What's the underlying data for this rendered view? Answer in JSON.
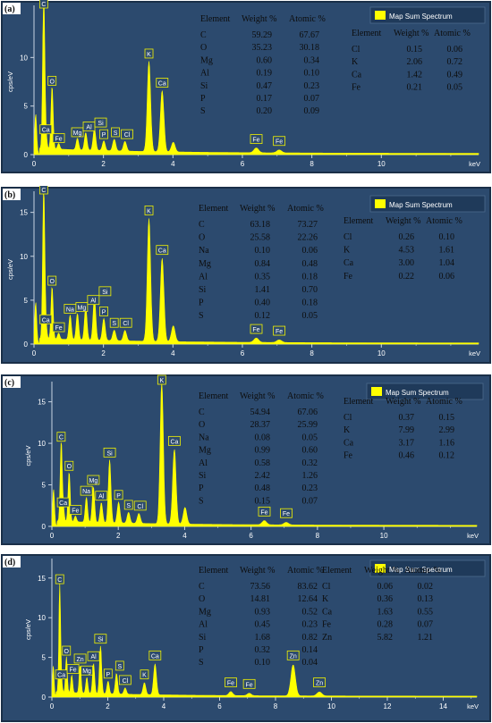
{
  "colors": {
    "panel_bg": "#2c4a6e",
    "panel_border": "#1a2f48",
    "axis": "#c8d4e2",
    "spectrum": "#ffff00",
    "label_box": "#f3f300",
    "text": "#ffffff",
    "table_text": "#0d0d0d"
  },
  "chart_data": [
    {
      "type": "area",
      "panel_label": "(a)",
      "legend": "Map Sum Spectrum",
      "ylabel": "cps/eV",
      "xlabel": "keV",
      "xlim": [
        0,
        12.8
      ],
      "ylim": [
        0,
        15
      ],
      "xticks": [
        "0",
        "2",
        "4",
        "6",
        "8",
        "10"
      ],
      "yticks": [
        "0",
        "5",
        "10"
      ],
      "peaks": [
        {
          "label": "C",
          "x": 0.28,
          "y": 16
        },
        {
          "label": "O",
          "x": 0.52,
          "y": 6.5
        },
        {
          "label": "Ca",
          "x": 0.34,
          "y": 1.5
        },
        {
          "label": "Fe",
          "x": 0.71,
          "y": 0.6
        },
        {
          "label": "Mg",
          "x": 1.25,
          "y": 1.2
        },
        {
          "label": "Al",
          "x": 1.49,
          "y": 1.8
        },
        {
          "label": "Si",
          "x": 1.74,
          "y": 2.2
        },
        {
          "label": "P",
          "x": 2.01,
          "y": 1.0
        },
        {
          "label": "S",
          "x": 2.31,
          "y": 1.2
        },
        {
          "label": "Cl",
          "x": 2.62,
          "y": 1.0
        },
        {
          "label": "K",
          "x": 3.31,
          "y": 9.3
        },
        {
          "label": "Ca",
          "x": 3.69,
          "y": 6.3
        },
        {
          "label": "Fe",
          "x": 6.4,
          "y": 0.5
        },
        {
          "label": "Fe",
          "x": 7.06,
          "y": 0.3
        }
      ],
      "extra_peaks": [
        {
          "x": 4.01,
          "y": 1.0
        },
        {
          "x": 0.05,
          "y": 4.2
        }
      ],
      "table_headers": [
        "Element",
        "Weight %",
        "Atomic %"
      ],
      "table_left": [
        [
          "C",
          "59.29",
          "67.67"
        ],
        [
          "O",
          "35.23",
          "30.18"
        ],
        [
          "Mg",
          "0.60",
          "0.34"
        ],
        [
          "Al",
          "0.19",
          "0.10"
        ],
        [
          "Si",
          "0.47",
          "0.23"
        ],
        [
          "P",
          "0.17",
          "0.07"
        ],
        [
          "S",
          "0.20",
          "0.09"
        ]
      ],
      "table_right": [
        [
          "Cl",
          "0.15",
          "0.06"
        ],
        [
          "K",
          "2.06",
          "0.72"
        ],
        [
          "Ca",
          "1.42",
          "0.49"
        ],
        [
          "Fe",
          "0.21",
          "0.05"
        ]
      ]
    },
    {
      "type": "area",
      "panel_label": "(b)",
      "legend": "Map Sum Spectrum",
      "ylabel": "cps/eV",
      "xlabel": "keV",
      "xlim": [
        0,
        12.8
      ],
      "ylim": [
        0,
        17
      ],
      "xticks": [
        "0",
        "2",
        "4",
        "6",
        "8",
        "10"
      ],
      "yticks": [
        "0",
        "5",
        "10",
        "15"
      ],
      "peaks": [
        {
          "label": "C",
          "x": 0.28,
          "y": 17
        },
        {
          "label": "O",
          "x": 0.52,
          "y": 6.0
        },
        {
          "label": "Ca",
          "x": 0.34,
          "y": 1.6
        },
        {
          "label": "Fe",
          "x": 0.71,
          "y": 0.7
        },
        {
          "label": "Na",
          "x": 1.04,
          "y": 2.8
        },
        {
          "label": "Mg",
          "x": 1.25,
          "y": 3.0
        },
        {
          "label": "Al",
          "x": 1.49,
          "y": 3.8
        },
        {
          "label": "Si",
          "x": 1.74,
          "y": 4.8
        },
        {
          "label": "P",
          "x": 2.01,
          "y": 2.5
        },
        {
          "label": "S",
          "x": 2.31,
          "y": 1.2
        },
        {
          "label": "Cl",
          "x": 2.62,
          "y": 1.2
        },
        {
          "label": "K",
          "x": 3.31,
          "y": 14.0
        },
        {
          "label": "Ca",
          "x": 3.69,
          "y": 9.5
        },
        {
          "label": "Fe",
          "x": 6.4,
          "y": 0.5
        },
        {
          "label": "Fe",
          "x": 7.06,
          "y": 0.3
        }
      ],
      "extra_peaks": [
        {
          "x": 4.01,
          "y": 1.8
        },
        {
          "x": 0.05,
          "y": 4.8
        }
      ],
      "table_headers": [
        "Element",
        "Weight %",
        "Atomic %"
      ],
      "table_left": [
        [
          "C",
          "63.18",
          "73.27"
        ],
        [
          "O",
          "25.58",
          "22.26"
        ],
        [
          "Na",
          "0.10",
          "0.06"
        ],
        [
          "Mg",
          "0.84",
          "0.48"
        ],
        [
          "Al",
          "0.35",
          "0.18"
        ],
        [
          "Si",
          "1.41",
          "0.70"
        ],
        [
          "P",
          "0.40",
          "0.18"
        ],
        [
          "S",
          "0.12",
          "0.05"
        ]
      ],
      "table_right": [
        [
          "Cl",
          "0.26",
          "0.10"
        ],
        [
          "K",
          "4.53",
          "1.61"
        ],
        [
          "Ca",
          "3.00",
          "1.04"
        ],
        [
          "Fe",
          "0.22",
          "0.06"
        ]
      ]
    },
    {
      "type": "area",
      "panel_label": "(c)",
      "legend": "Map Sum Spectrum",
      "ylabel": "cps/eV",
      "xlabel": "keV",
      "xlim": [
        0,
        12.8
      ],
      "ylim": [
        0,
        17
      ],
      "xticks": [
        "0",
        "2",
        "4",
        "6",
        "8",
        "10"
      ],
      "yticks": [
        "0",
        "5",
        "10",
        "15"
      ],
      "peaks": [
        {
          "label": "C",
          "x": 0.28,
          "y": 9.5
        },
        {
          "label": "O",
          "x": 0.52,
          "y": 6.0
        },
        {
          "label": "Ca",
          "x": 0.34,
          "y": 1.6
        },
        {
          "label": "Fe",
          "x": 0.71,
          "y": 0.7
        },
        {
          "label": "Na",
          "x": 1.04,
          "y": 3.0
        },
        {
          "label": "Mg",
          "x": 1.25,
          "y": 4.3
        },
        {
          "label": "Al",
          "x": 1.49,
          "y": 2.4
        },
        {
          "label": "Si",
          "x": 1.74,
          "y": 7.6
        },
        {
          "label": "P",
          "x": 2.01,
          "y": 2.5
        },
        {
          "label": "S",
          "x": 2.31,
          "y": 1.3
        },
        {
          "label": "Cl",
          "x": 2.62,
          "y": 1.2
        },
        {
          "label": "K",
          "x": 3.31,
          "y": 17.0
        },
        {
          "label": "Ca",
          "x": 3.69,
          "y": 9.0
        },
        {
          "label": "Fe",
          "x": 6.4,
          "y": 0.5
        },
        {
          "label": "Fe",
          "x": 7.06,
          "y": 0.3
        }
      ],
      "extra_peaks": [
        {
          "x": 4.01,
          "y": 2.0
        },
        {
          "x": 0.05,
          "y": 4.5
        }
      ],
      "table_headers": [
        "Element",
        "Weight %",
        "Atomic %"
      ],
      "table_left": [
        [
          "C",
          "54.94",
          "67.06"
        ],
        [
          "O",
          "28.37",
          "25.99"
        ],
        [
          "Na",
          "0.08",
          "0.05"
        ],
        [
          "Mg",
          "0.99",
          "0.60"
        ],
        [
          "Al",
          "0.58",
          "0.32"
        ],
        [
          "Si",
          "2.42",
          "1.26"
        ],
        [
          "P",
          "0.48",
          "0.23"
        ],
        [
          "S",
          "0.15",
          "0.07"
        ]
      ],
      "table_right": [
        [
          "Cl",
          "0.37",
          "0.15"
        ],
        [
          "K",
          "7.99",
          "2.99"
        ],
        [
          "Ca",
          "3.17",
          "1.16"
        ],
        [
          "Fe",
          "0.46",
          "0.12"
        ]
      ]
    },
    {
      "type": "area",
      "panel_label": "(d)",
      "legend": "Map Sum Spectrum",
      "ylabel": "cps/eV",
      "xlabel": "keV",
      "xlim": [
        0,
        15.2
      ],
      "ylim": [
        0,
        17
      ],
      "xticks": [
        "0",
        "2",
        "4",
        "6",
        "8",
        "10",
        "12",
        "14"
      ],
      "yticks": [
        "0",
        "5",
        "10",
        "15"
      ],
      "peaks": [
        {
          "label": "C",
          "x": 0.28,
          "y": 13.5
        },
        {
          "label": "O",
          "x": 0.52,
          "y": 4.5
        },
        {
          "label": "Ca",
          "x": 0.34,
          "y": 1.5
        },
        {
          "label": "Zn",
          "x": 1.01,
          "y": 3.5
        },
        {
          "label": "Fe",
          "x": 0.71,
          "y": 2.2
        },
        {
          "label": "Mg",
          "x": 1.25,
          "y": 2.0
        },
        {
          "label": "Al",
          "x": 1.49,
          "y": 3.8
        },
        {
          "label": "Si",
          "x": 1.74,
          "y": 6.0
        },
        {
          "label": "P",
          "x": 2.01,
          "y": 1.6
        },
        {
          "label": "S",
          "x": 2.31,
          "y": 2.6
        },
        {
          "label": "Cl",
          "x": 2.62,
          "y": 0.8
        },
        {
          "label": "K",
          "x": 3.31,
          "y": 1.5
        },
        {
          "label": "Ca",
          "x": 3.69,
          "y": 3.9
        },
        {
          "label": "Fe",
          "x": 6.4,
          "y": 0.5
        },
        {
          "label": "Fe",
          "x": 7.06,
          "y": 0.3
        },
        {
          "label": "Zn",
          "x": 8.63,
          "y": 3.9
        },
        {
          "label": "Zn",
          "x": 9.57,
          "y": 0.5
        }
      ],
      "extra_peaks": [
        {
          "x": 0.05,
          "y": 4.0
        }
      ],
      "table_headers": [
        "Element",
        "Weight %",
        "Atomic %"
      ],
      "table_left": [
        [
          "C",
          "73.56",
          "83.62"
        ],
        [
          "O",
          "14.81",
          "12.64"
        ],
        [
          "Mg",
          "0.93",
          "0.52"
        ],
        [
          "Al",
          "0.45",
          "0.23"
        ],
        [
          "Si",
          "1.68",
          "0.82"
        ],
        [
          "P",
          "0.32",
          "0.14"
        ],
        [
          "S",
          "0.10",
          "0.04"
        ]
      ],
      "table_right": [
        [
          "Cl",
          "0.06",
          "0.02"
        ],
        [
          "K",
          "0.36",
          "0.13"
        ],
        [
          "Ca",
          "1.63",
          "0.55"
        ],
        [
          "Fe",
          "0.28",
          "0.07"
        ],
        [
          "Zn",
          "5.82",
          "1.21"
        ]
      ]
    }
  ]
}
